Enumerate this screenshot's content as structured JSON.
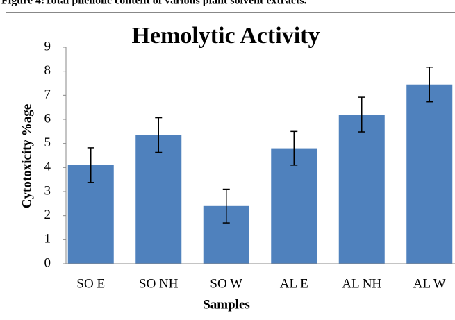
{
  "caption": "Figure 4:Total phenolic content of various plant solvent extracts.",
  "chart_data": {
    "type": "bar",
    "title": "Hemolytic Activity",
    "x_label": "Samples",
    "y_label": "Cytotoxicity %age",
    "categories": [
      "SO E",
      "SO NH",
      "SO W",
      "AL E",
      "AL NH",
      "AL W"
    ],
    "values": [
      4.1,
      5.35,
      2.4,
      4.8,
      6.2,
      7.45
    ],
    "errors": [
      0.72,
      0.72,
      0.7,
      0.7,
      0.72,
      0.72
    ],
    "color": "#4f81bd",
    "ylim": [
      0,
      9
    ],
    "yticks": [
      0,
      1,
      2,
      3,
      4,
      5,
      6,
      7,
      8,
      9
    ],
    "grid": false
  }
}
